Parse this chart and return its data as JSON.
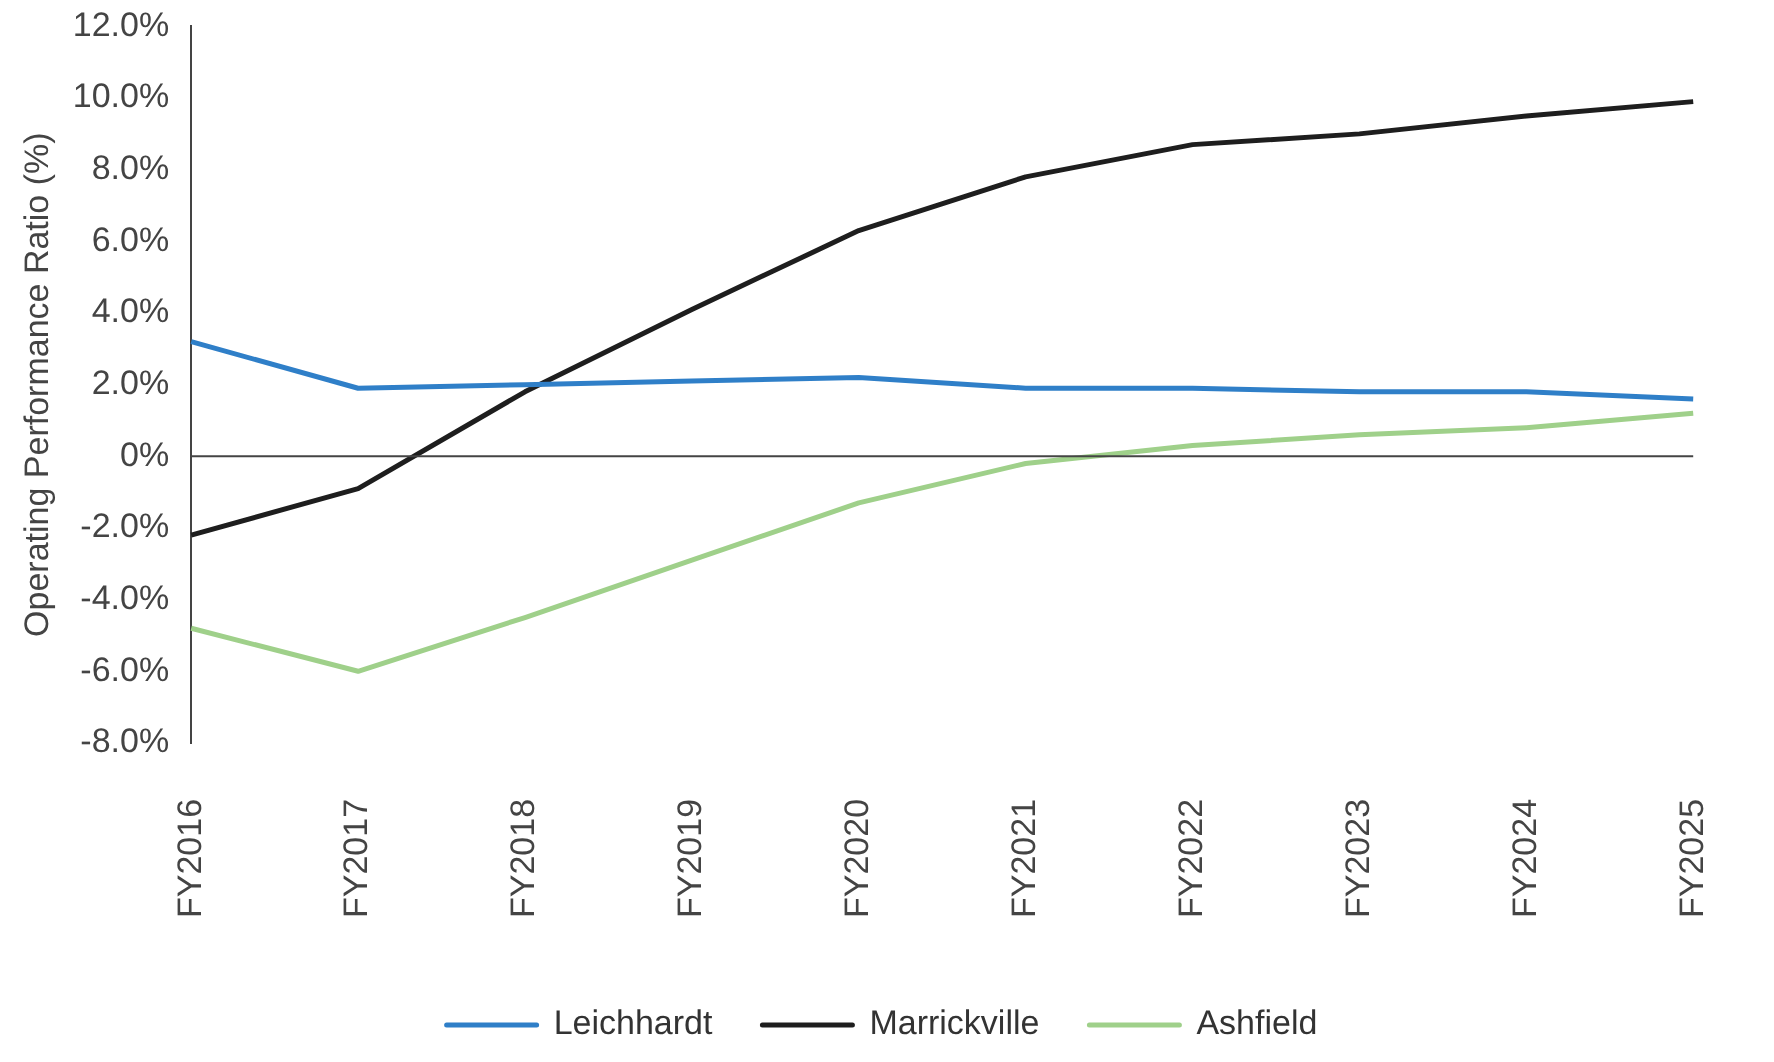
{
  "chart_data": {
    "type": "line",
    "ylabel": "Operating Performance Ratio (%)",
    "categories": [
      "FY2016",
      "FY2017",
      "FY2018",
      "FY2019",
      "FY2020",
      "FY2021",
      "FY2022",
      "FY2023",
      "FY2024",
      "FY2025"
    ],
    "series": [
      {
        "name": "Leichhardt",
        "color": "#2f7fc8",
        "values": [
          3.2,
          1.9,
          2.0,
          2.1,
          2.2,
          1.9,
          1.9,
          1.8,
          1.8,
          1.6
        ]
      },
      {
        "name": "Marrickville",
        "color": "#1e1e1e",
        "values": [
          -2.2,
          -0.9,
          1.8,
          4.1,
          6.3,
          7.8,
          8.7,
          9.0,
          9.5,
          9.9
        ]
      },
      {
        "name": "Ashfield",
        "color": "#9fd08a",
        "values": [
          -4.8,
          -6.0,
          -4.5,
          -2.9,
          -1.3,
          -0.2,
          0.3,
          0.6,
          0.8,
          1.2
        ]
      }
    ],
    "ylim": [
      -8,
      12
    ],
    "yticks": [
      {
        "value": -8,
        "label": "-8.0%"
      },
      {
        "value": -6,
        "label": "-6.0%"
      },
      {
        "value": -4,
        "label": "-4.0%"
      },
      {
        "value": -2,
        "label": "-2.0%"
      },
      {
        "value": 0,
        "label": "0%"
      },
      {
        "value": 2,
        "label": "2.0%"
      },
      {
        "value": 4,
        "label": "4.0%"
      },
      {
        "value": 6,
        "label": "6.0%"
      },
      {
        "value": 8,
        "label": "8.0%"
      },
      {
        "value": 10,
        "label": "10.0%"
      },
      {
        "value": 12,
        "label": "12.0%"
      }
    ],
    "ref_lines": [
      {
        "axis": "y",
        "value": 0,
        "color": "#444444"
      }
    ],
    "legend": "bottom",
    "marker": "none",
    "line_style": "solid",
    "grid": false
  }
}
